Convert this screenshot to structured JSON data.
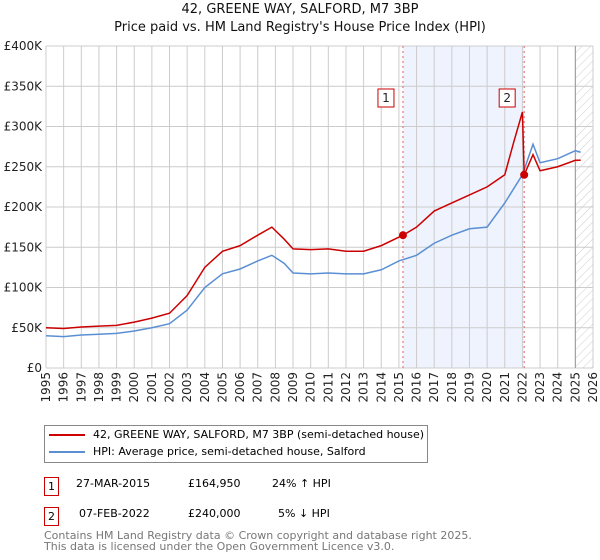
{
  "title_line1": "42, GREENE WAY, SALFORD, M7 3BP",
  "title_line2": "Price paid vs. HM Land Registry's House Price Index (HPI)",
  "chart_data": {
    "type": "line",
    "xlim": [
      1995,
      2026
    ],
    "ylim": [
      0,
      400000
    ],
    "x_ticks": [
      "1995",
      "1996",
      "1997",
      "1998",
      "1999",
      "2000",
      "2001",
      "2002",
      "2003",
      "2004",
      "2005",
      "2006",
      "2007",
      "2008",
      "2009",
      "2010",
      "2011",
      "2012",
      "2013",
      "2014",
      "2015",
      "2016",
      "2017",
      "2018",
      "2019",
      "2020",
      "2021",
      "2022",
      "2023",
      "2024",
      "2025",
      "2026"
    ],
    "y_ticks": [
      {
        "v": 0,
        "label": "£0"
      },
      {
        "v": 50000,
        "label": "£50K"
      },
      {
        "v": 100000,
        "label": "£100K"
      },
      {
        "v": 150000,
        "label": "£150K"
      },
      {
        "v": 200000,
        "label": "£200K"
      },
      {
        "v": 250000,
        "label": "£250K"
      },
      {
        "v": 300000,
        "label": "£300K"
      },
      {
        "v": 350000,
        "label": "£350K"
      },
      {
        "v": 400000,
        "label": "£400K"
      }
    ],
    "shaded_range": [
      2015.23,
      2022.1
    ],
    "hatched_from": 2025.0,
    "series": [
      {
        "name": "42, GREENE WAY, SALFORD, M7 3BP (semi-detached house)",
        "color": "#cc0000",
        "x": [
          1995,
          1996,
          1997,
          1998,
          1999,
          2000,
          2001,
          2002,
          2003,
          2004,
          2005,
          2006,
          2007,
          2007.8,
          2008.5,
          2009,
          2010,
          2011,
          2012,
          2013,
          2014,
          2015.23,
          2016,
          2017,
          2018,
          2019,
          2020,
          2021,
          2021.5,
          2022.0,
          2022.1,
          2022.6,
          2023,
          2024,
          2025,
          2025.3
        ],
        "y": [
          50000,
          49000,
          51000,
          52000,
          53000,
          57000,
          62000,
          68000,
          90000,
          125000,
          145000,
          152000,
          165000,
          175000,
          160000,
          148000,
          147000,
          148000,
          145000,
          145000,
          152000,
          164950,
          175000,
          195000,
          205000,
          215000,
          225000,
          240000,
          280000,
          318000,
          240000,
          265000,
          245000,
          250000,
          258000,
          258000
        ]
      },
      {
        "name": "HPI: Average price, semi-detached house, Salford",
        "color": "#5b8fd4",
        "x": [
          1995,
          1996,
          1997,
          1998,
          1999,
          2000,
          2001,
          2002,
          2003,
          2004,
          2005,
          2006,
          2007,
          2007.8,
          2008.5,
          2009,
          2010,
          2011,
          2012,
          2013,
          2014,
          2015,
          2016,
          2017,
          2018,
          2019,
          2020,
          2021,
          2022,
          2022.6,
          2023,
          2024,
          2025,
          2025.3
        ],
        "y": [
          40000,
          39000,
          41000,
          42000,
          43000,
          46000,
          50000,
          55000,
          72000,
          100000,
          117000,
          123000,
          133000,
          140000,
          130000,
          118000,
          117000,
          118000,
          117000,
          117000,
          122000,
          133000,
          140000,
          155000,
          165000,
          173000,
          175000,
          205000,
          240000,
          278000,
          255000,
          260000,
          270000,
          268000
        ]
      }
    ],
    "markers": [
      {
        "label": "1",
        "x": 2015.23,
        "y": 164950
      },
      {
        "label": "2",
        "x": 2022.1,
        "y": 240000
      }
    ]
  },
  "legend": [
    "42, GREENE WAY, SALFORD, M7 3BP (semi-detached house)",
    "HPI: Average price, semi-detached house, Salford"
  ],
  "transactions": [
    {
      "n": "1",
      "date": "27-MAR-2015",
      "price": "£164,950",
      "hpi": "24% ↑ HPI"
    },
    {
      "n": "2",
      "date": "07-FEB-2022",
      "price": "£240,000",
      "hpi": "5% ↓ HPI"
    }
  ],
  "footer1": "Contains HM Land Registry data © Crown copyright and database right 2025.",
  "footer2": "This data is licensed under the Open Government Licence v3.0."
}
